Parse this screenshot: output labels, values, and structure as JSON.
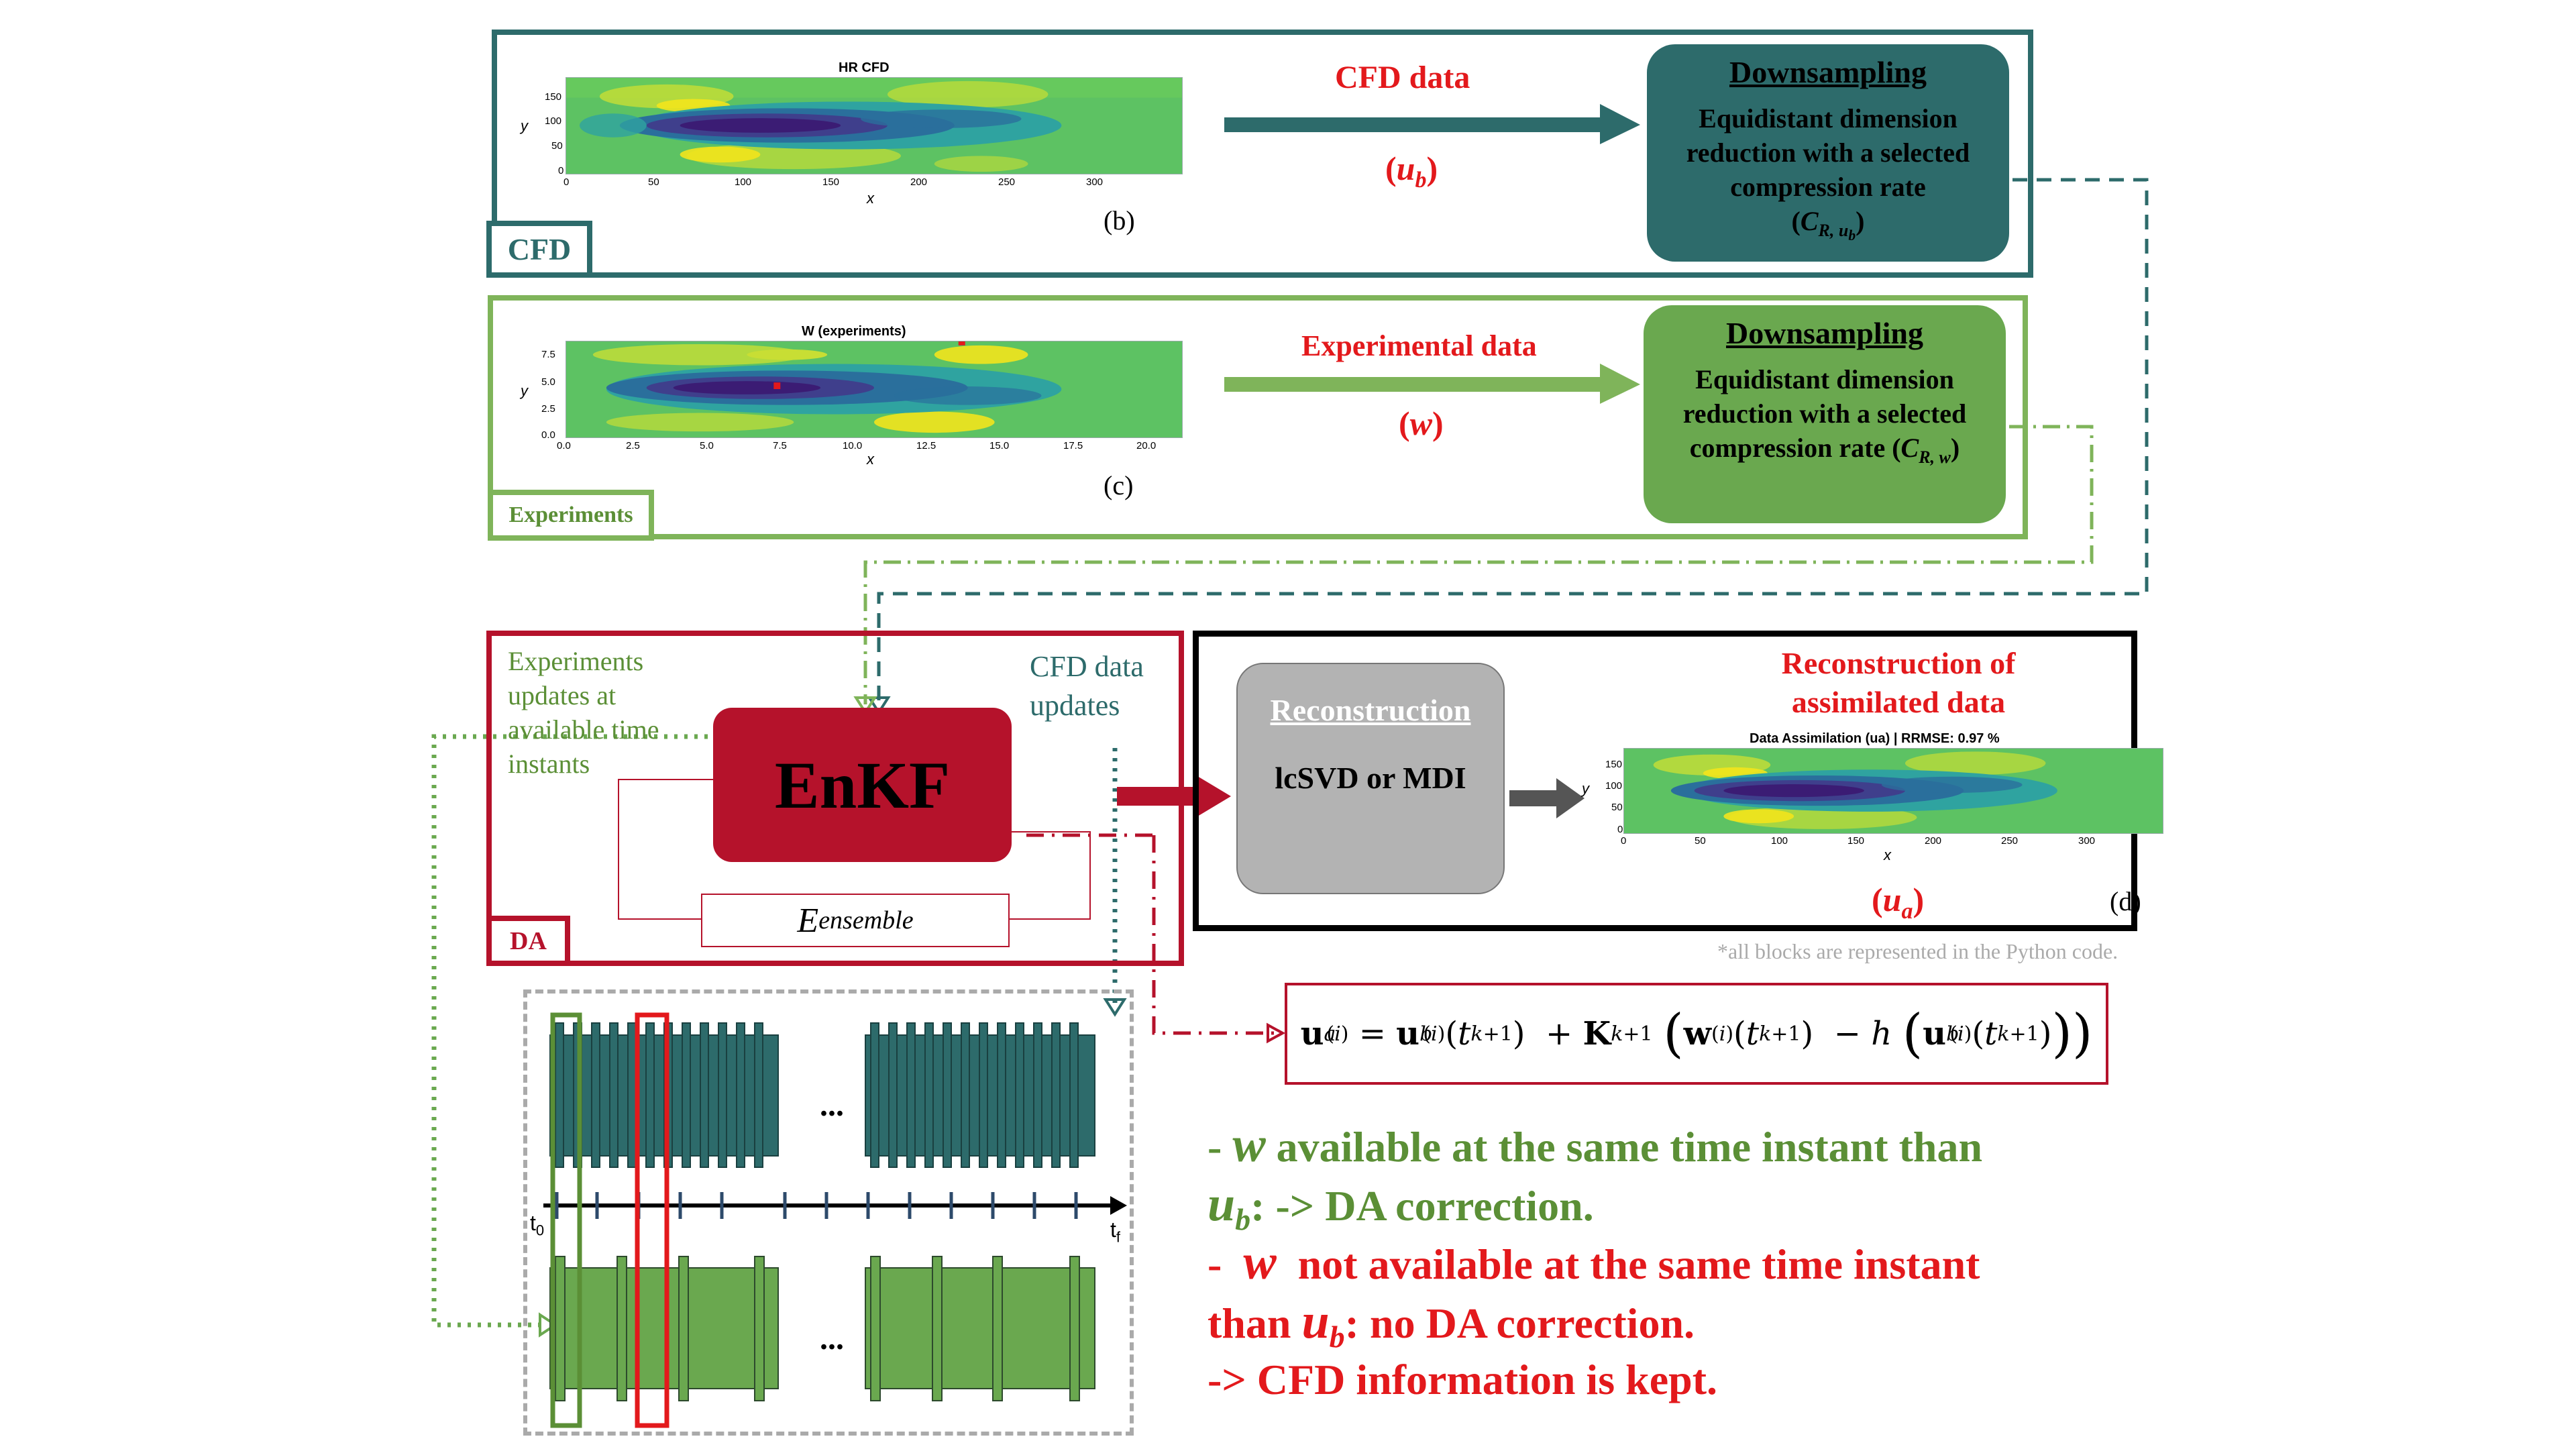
{
  "colors": {
    "teal": "#2d6b6b",
    "green": "#6aa84f",
    "dark_red": "#b5122b",
    "red_text": "#e3191c",
    "gray_box": "#b3b3b3",
    "dash_gray": "#aaaaaa"
  },
  "cfd_panel": {
    "tag": "CFD",
    "plot_title": "HR CFD",
    "y_ticks": [
      "150",
      "100",
      "50",
      "0"
    ],
    "x_ticks": [
      "0",
      "50",
      "100",
      "150",
      "200",
      "250",
      "300"
    ],
    "x_label": "x",
    "y_label": "y",
    "caption": "(b)",
    "arrow_label": "CFD data",
    "symbol": "(u_b)",
    "downsampling_title": "Downsampling",
    "downsampling_text": [
      "Equidistant dimension",
      "reduction with a selected",
      "compression rate",
      "(C_R, u_b)"
    ]
  },
  "exp_panel": {
    "tag": "Experiments",
    "plot_title": "W (experiments)",
    "y_ticks": [
      "7.5",
      "5.0",
      "2.5",
      "0.0"
    ],
    "x_ticks": [
      "0.0",
      "2.5",
      "5.0",
      "7.5",
      "10.0",
      "12.5",
      "15.0",
      "17.5",
      "20.0"
    ],
    "x_label": "x",
    "y_label": "y",
    "caption": "(c)",
    "arrow_label": "Experimental data",
    "symbol": "(w)",
    "downsampling_title": "Downsampling",
    "downsampling_text": [
      "Equidistant dimension",
      "reduction with a selected",
      "compression rate (C_R, w)"
    ]
  },
  "da_panel": {
    "tag": "DA",
    "exp_updates": [
      "Experiments",
      "updates at",
      "available time",
      "instants"
    ],
    "cfd_updates": [
      "CFD data",
      "updates"
    ],
    "enkf": "EnKF",
    "ensemble": "E_ensemble"
  },
  "recon_panel": {
    "box_title": "Reconstruction",
    "box_text": "lcSVD or MDI",
    "heading": [
      "Reconstruction of",
      "assimilated data"
    ],
    "plot_title": "Data Assimilation (ua) | RRMSE: 0.97 %",
    "y_ticks": [
      "150",
      "100",
      "50",
      "0"
    ],
    "x_ticks": [
      "0",
      "50",
      "100",
      "150",
      "200",
      "250",
      "300"
    ],
    "x_label": "x",
    "y_label": "y",
    "symbol": "(u_a)",
    "caption": "(d)",
    "note": "*all blocks are represented in the Python code."
  },
  "timeline": {
    "ellipsis": "...",
    "t0": "t0",
    "tf": "tf"
  },
  "equation": "u_a^(i) = u_b^(i)(t_{k+1}) + K_{k+1} ( w^(i)(t_{k+1}) − h ( u_b^(i)(t_{k+1}) ) )",
  "bullets": {
    "line1": "- w available at the same time instant than",
    "line2": "u_b: -> DA correction.",
    "line3": "-  w  not available at the same time instant",
    "line4": "than u_b: no DA correction.",
    "line5": "-> CFD information is kept."
  }
}
